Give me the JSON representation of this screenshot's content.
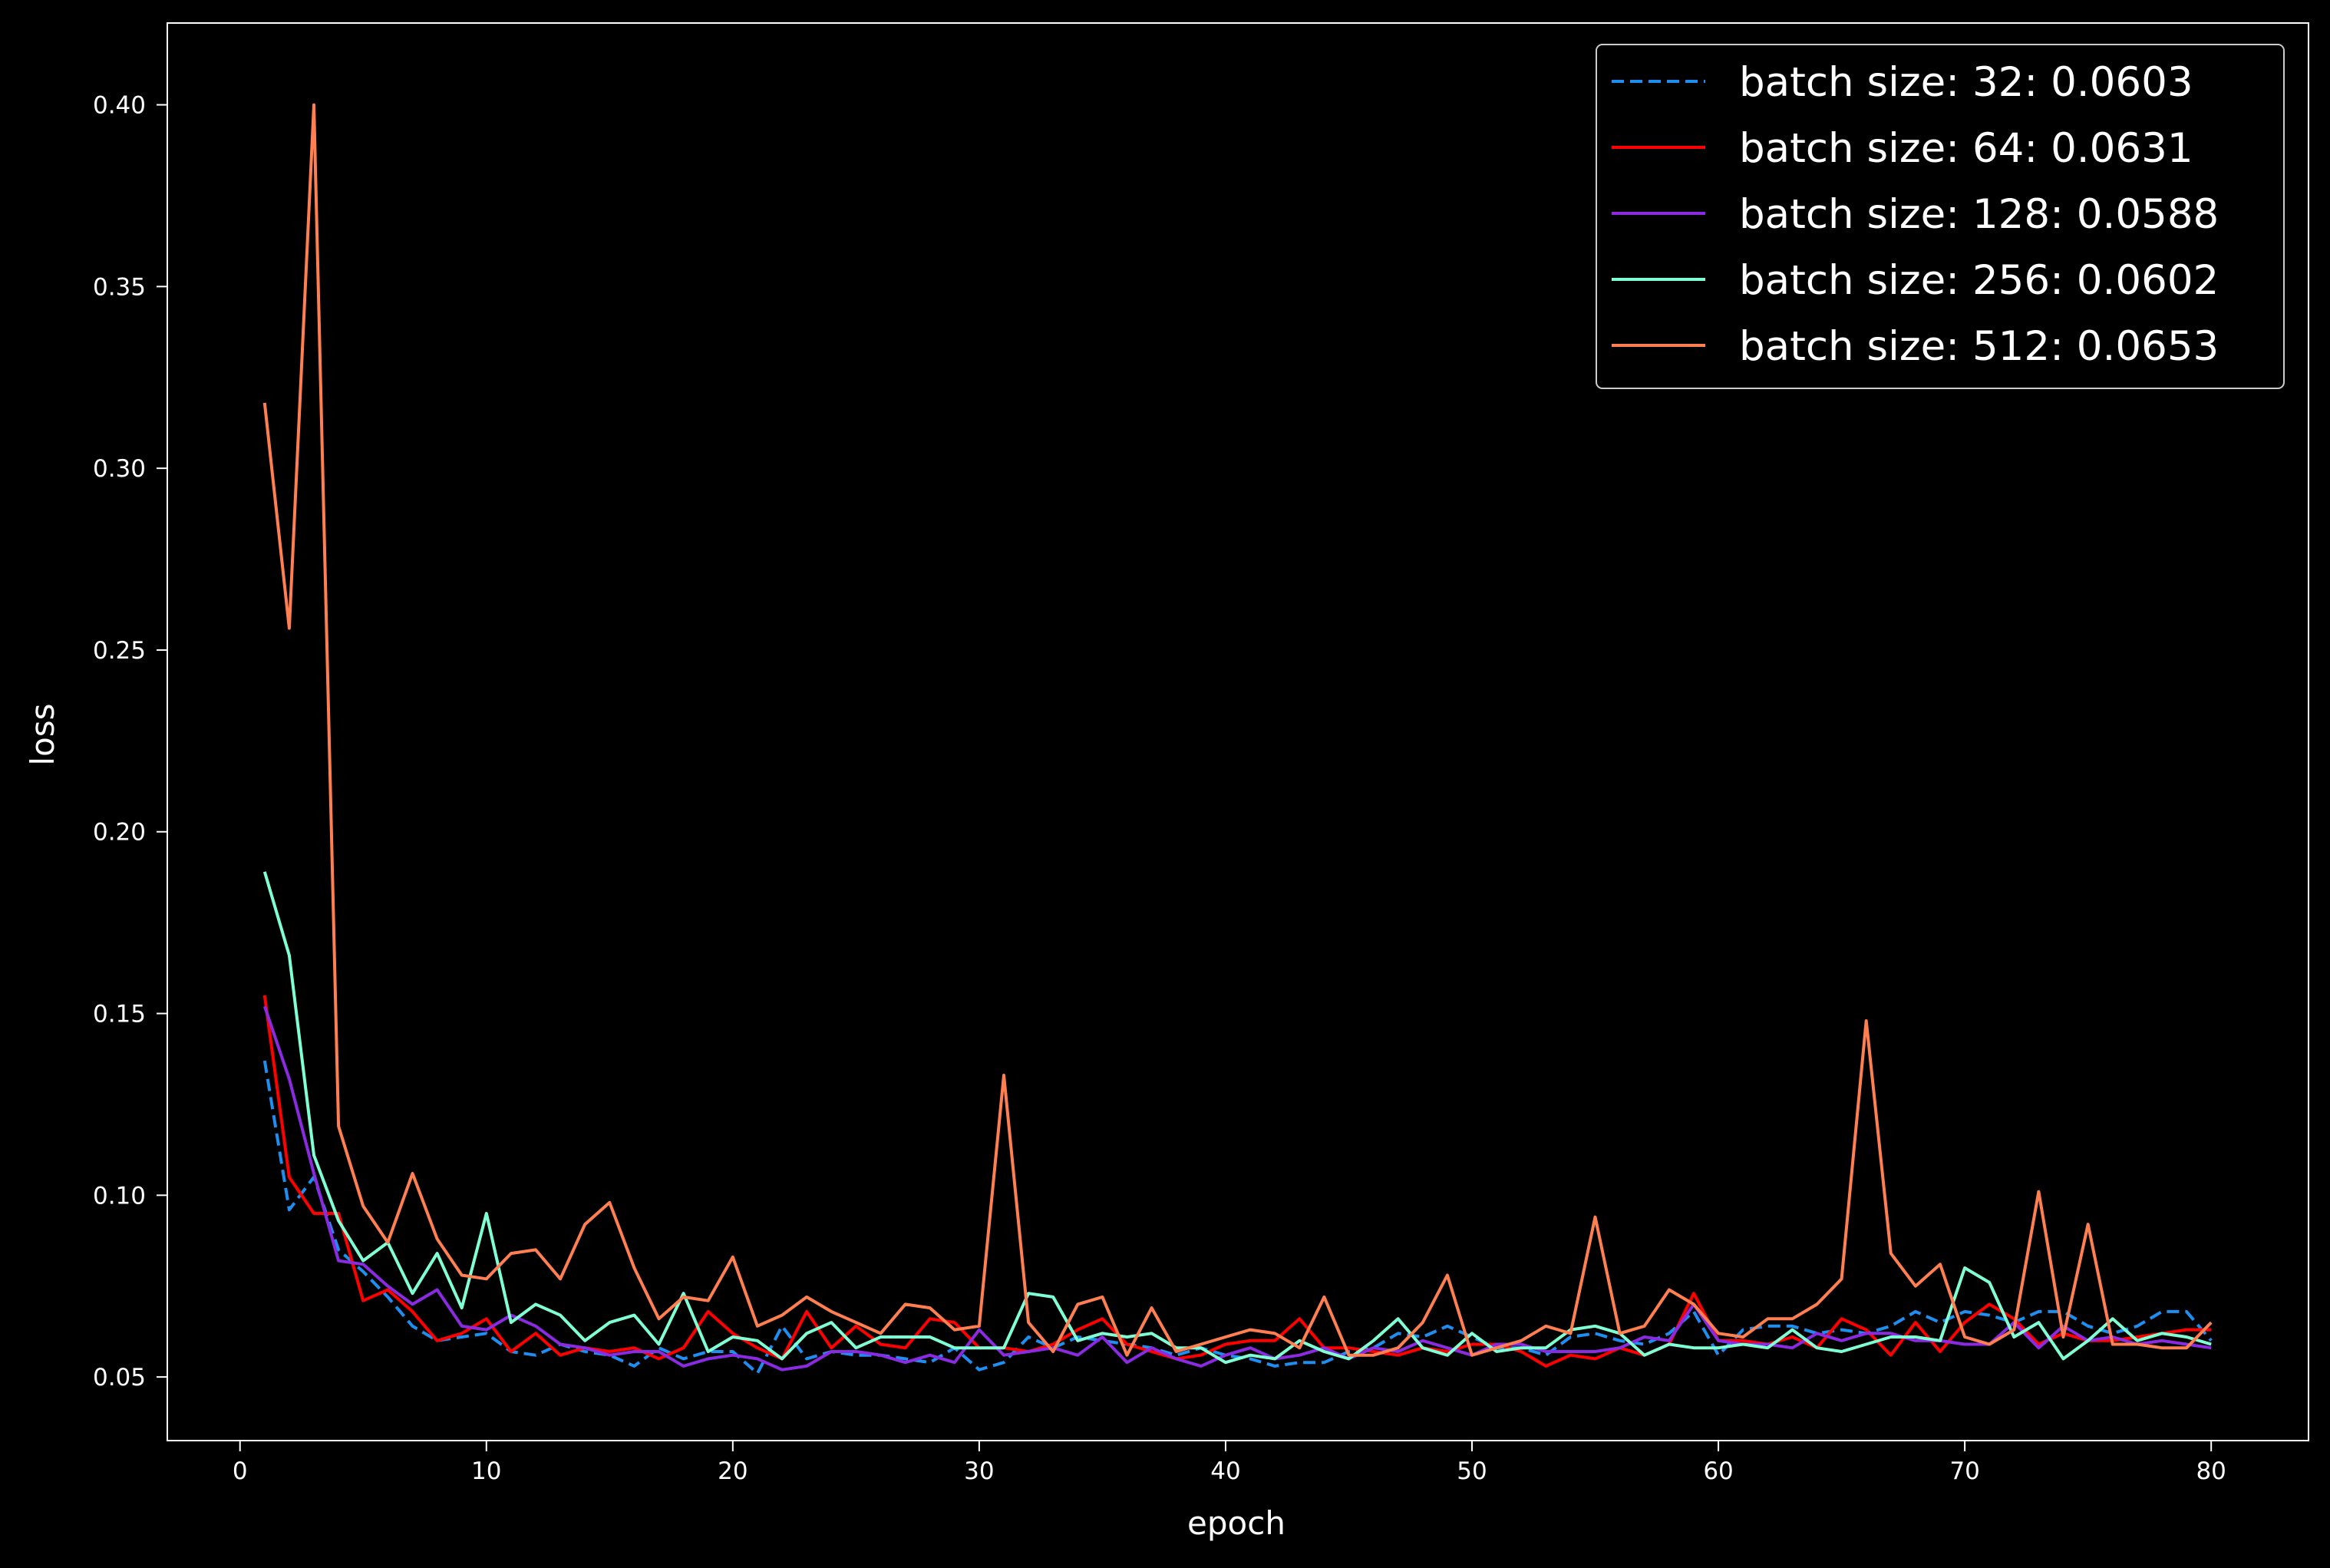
{
  "chart_data": {
    "type": "line",
    "title": "",
    "xlabel": "epoch",
    "ylabel": "loss",
    "xlim": [
      -2.95,
      83.95
    ],
    "ylim": [
      0.0325,
      0.4225
    ],
    "xticks": [
      0,
      10,
      20,
      30,
      40,
      50,
      60,
      70,
      80
    ],
    "yticks": [
      0.05,
      0.1,
      0.15,
      0.2,
      0.25,
      0.3,
      0.35,
      0.4
    ],
    "grid": false,
    "legend_position": "top-right",
    "x": [
      1,
      2,
      3,
      4,
      5,
      6,
      7,
      8,
      9,
      10,
      11,
      12,
      13,
      14,
      15,
      16,
      17,
      18,
      19,
      20,
      21,
      22,
      23,
      24,
      25,
      26,
      27,
      28,
      29,
      30,
      31,
      32,
      33,
      34,
      35,
      36,
      37,
      38,
      39,
      40,
      41,
      42,
      43,
      44,
      45,
      46,
      47,
      48,
      49,
      50,
      51,
      52,
      53,
      54,
      55,
      56,
      57,
      58,
      59,
      60,
      61,
      62,
      63,
      64,
      65,
      66,
      67,
      68,
      69,
      70,
      71,
      72,
      73,
      74,
      75,
      76,
      77,
      78,
      79,
      80
    ],
    "series": [
      {
        "name": "batch size: 32: 0.0603",
        "color": "#1f8ef1",
        "dashed": true,
        "values": [
          0.137,
          0.096,
          0.105,
          0.085,
          0.079,
          0.072,
          0.064,
          0.06,
          0.061,
          0.062,
          0.057,
          0.056,
          0.059,
          0.057,
          0.056,
          0.053,
          0.058,
          0.055,
          0.057,
          0.057,
          0.051,
          0.064,
          0.055,
          0.057,
          0.056,
          0.056,
          0.055,
          0.054,
          0.058,
          0.052,
          0.054,
          0.061,
          0.058,
          0.061,
          0.06,
          0.059,
          0.058,
          0.056,
          0.058,
          0.056,
          0.055,
          0.053,
          0.054,
          0.054,
          0.057,
          0.058,
          0.062,
          0.061,
          0.064,
          0.061,
          0.058,
          0.058,
          0.056,
          0.061,
          0.062,
          0.06,
          0.059,
          0.062,
          0.068,
          0.056,
          0.063,
          0.064,
          0.064,
          0.062,
          0.063,
          0.062,
          0.064,
          0.068,
          0.065,
          0.068,
          0.067,
          0.065,
          0.068,
          0.068,
          0.064,
          0.062,
          0.064,
          0.068,
          0.068,
          0.06
        ]
      },
      {
        "name": "batch size: 64: 0.0631",
        "color": "#ff0000",
        "dashed": false,
        "values": [
          0.155,
          0.105,
          0.095,
          0.095,
          0.071,
          0.074,
          0.068,
          0.06,
          0.062,
          0.066,
          0.057,
          0.062,
          0.056,
          0.058,
          0.057,
          0.058,
          0.055,
          0.058,
          0.068,
          0.062,
          0.058,
          0.055,
          0.068,
          0.058,
          0.064,
          0.059,
          0.058,
          0.066,
          0.065,
          0.058,
          0.058,
          0.057,
          0.059,
          0.063,
          0.066,
          0.059,
          0.057,
          0.055,
          0.056,
          0.059,
          0.06,
          0.06,
          0.066,
          0.058,
          0.058,
          0.057,
          0.056,
          0.058,
          0.057,
          0.059,
          0.059,
          0.057,
          0.053,
          0.056,
          0.055,
          0.058,
          0.056,
          0.059,
          0.073,
          0.06,
          0.06,
          0.059,
          0.061,
          0.058,
          0.066,
          0.063,
          0.056,
          0.065,
          0.057,
          0.065,
          0.07,
          0.066,
          0.059,
          0.062,
          0.06,
          0.06,
          0.061,
          0.062,
          0.063,
          0.063
        ]
      },
      {
        "name": "batch size: 128: 0.0588",
        "color": "#8a2be2",
        "dashed": false,
        "values": [
          0.152,
          0.132,
          0.106,
          0.082,
          0.081,
          0.075,
          0.07,
          0.074,
          0.064,
          0.063,
          0.067,
          0.064,
          0.059,
          0.058,
          0.056,
          0.057,
          0.057,
          0.053,
          0.055,
          0.056,
          0.055,
          0.052,
          0.053,
          0.057,
          0.057,
          0.056,
          0.054,
          0.056,
          0.054,
          0.063,
          0.056,
          0.057,
          0.058,
          0.056,
          0.061,
          0.054,
          0.058,
          0.055,
          0.053,
          0.056,
          0.058,
          0.055,
          0.056,
          0.058,
          0.055,
          0.058,
          0.057,
          0.06,
          0.058,
          0.056,
          0.059,
          0.059,
          0.057,
          0.057,
          0.057,
          0.058,
          0.061,
          0.06,
          0.07,
          0.06,
          0.059,
          0.059,
          0.058,
          0.062,
          0.06,
          0.062,
          0.062,
          0.06,
          0.06,
          0.059,
          0.059,
          0.065,
          0.058,
          0.064,
          0.06,
          0.061,
          0.059,
          0.06,
          0.059,
          0.058
        ]
      },
      {
        "name": "batch size: 256: 0.0602",
        "color": "#7fffd4",
        "dashed": false,
        "values": [
          0.189,
          0.166,
          0.111,
          0.093,
          0.082,
          0.087,
          0.073,
          0.084,
          0.069,
          0.095,
          0.065,
          0.07,
          0.067,
          0.06,
          0.065,
          0.067,
          0.059,
          0.073,
          0.057,
          0.061,
          0.06,
          0.055,
          0.062,
          0.065,
          0.058,
          0.061,
          0.061,
          0.061,
          0.058,
          0.058,
          0.058,
          0.073,
          0.072,
          0.06,
          0.062,
          0.061,
          0.062,
          0.058,
          0.058,
          0.054,
          0.056,
          0.055,
          0.06,
          0.057,
          0.055,
          0.06,
          0.066,
          0.058,
          0.056,
          0.062,
          0.057,
          0.058,
          0.058,
          0.063,
          0.064,
          0.062,
          0.056,
          0.059,
          0.058,
          0.058,
          0.059,
          0.058,
          0.063,
          0.058,
          0.057,
          0.059,
          0.061,
          0.061,
          0.06,
          0.08,
          0.076,
          0.061,
          0.065,
          0.055,
          0.06,
          0.066,
          0.06,
          0.062,
          0.061,
          0.059
        ]
      },
      {
        "name": "batch size: 512: 0.0653",
        "color": "#ff7f50",
        "dashed": false,
        "values": [
          0.318,
          0.256,
          0.4,
          0.119,
          0.097,
          0.087,
          0.106,
          0.088,
          0.078,
          0.077,
          0.084,
          0.085,
          0.077,
          0.092,
          0.098,
          0.08,
          0.066,
          0.072,
          0.071,
          0.083,
          0.064,
          0.067,
          0.072,
          0.068,
          0.065,
          0.062,
          0.07,
          0.069,
          0.063,
          0.064,
          0.133,
          0.065,
          0.057,
          0.07,
          0.072,
          0.056,
          0.069,
          0.057,
          0.059,
          0.061,
          0.063,
          0.062,
          0.058,
          0.072,
          0.056,
          0.056,
          0.058,
          0.065,
          0.078,
          0.056,
          0.058,
          0.06,
          0.064,
          0.062,
          0.094,
          0.062,
          0.064,
          0.074,
          0.07,
          0.062,
          0.061,
          0.066,
          0.066,
          0.07,
          0.077,
          0.148,
          0.084,
          0.075,
          0.081,
          0.061,
          0.059,
          0.063,
          0.101,
          0.061,
          0.092,
          0.059,
          0.059,
          0.058,
          0.058,
          0.065
        ]
      }
    ]
  }
}
